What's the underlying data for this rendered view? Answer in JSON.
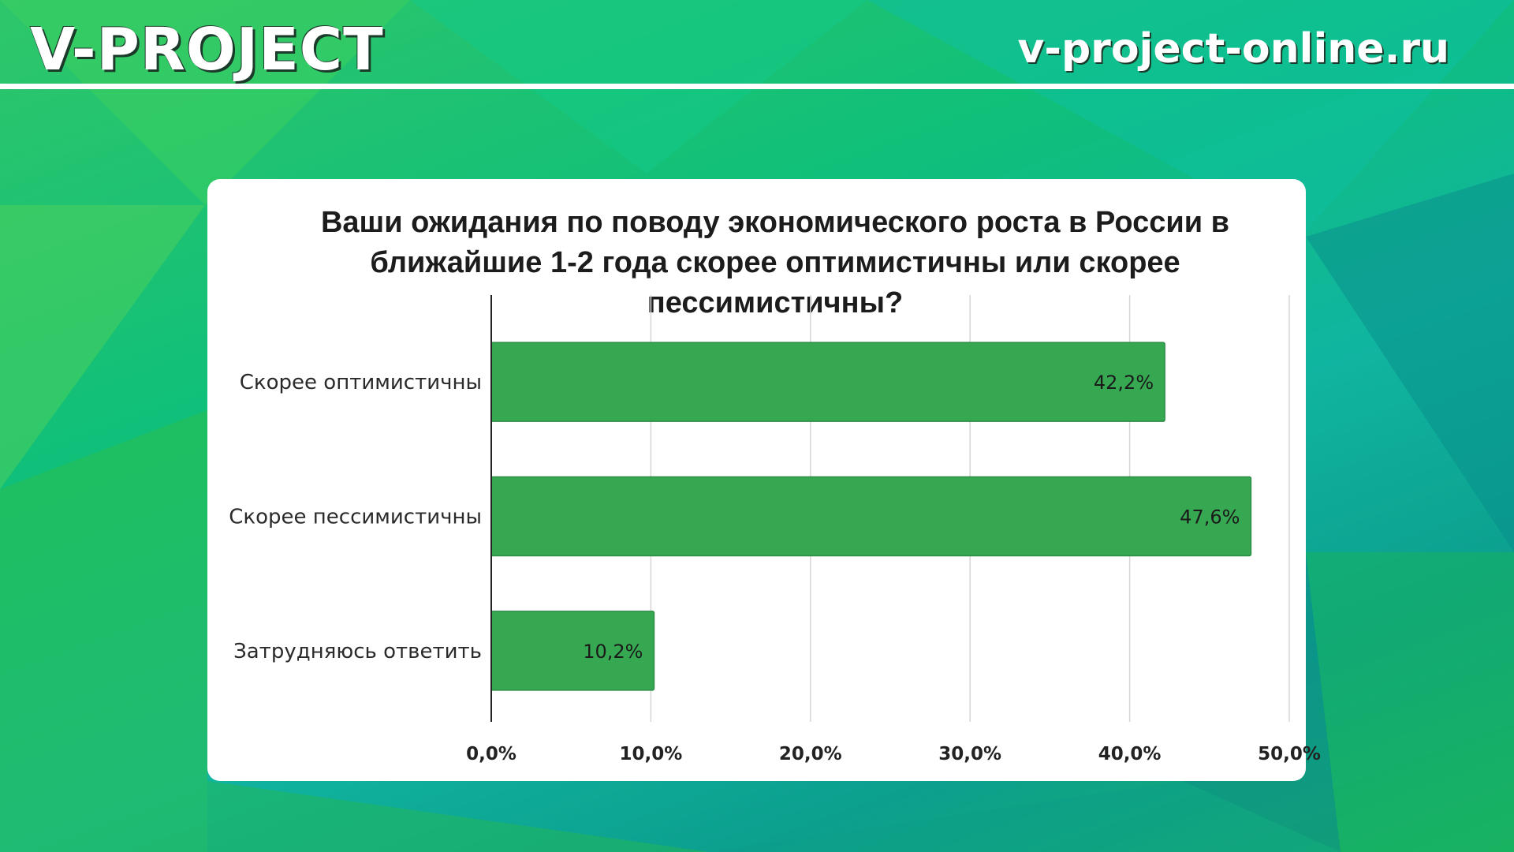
{
  "header": {
    "brand": "V-PROJECT",
    "site": "v-project-online.ru"
  },
  "colors": {
    "bar": "#36a852",
    "bar_border": "#2e8c45",
    "grid": "#d6d6d6",
    "axis": "#222222"
  },
  "chart_data": {
    "type": "bar",
    "orientation": "horizontal",
    "title": "Ваши ожидания по поводу экономического роста в России в ближайшие 1-2 года скорее оптимистичны или скорее пессимистичны?",
    "categories": [
      "Скорее оптимистичны",
      "Скорее пессимистичны",
      "Затрудняюсь ответить"
    ],
    "values": [
      42.2,
      47.6,
      10.2
    ],
    "data_labels": [
      "42,2%",
      "47,6%",
      "10,2%"
    ],
    "xlim": [
      0,
      50
    ],
    "xticks": [
      0,
      10,
      20,
      30,
      40,
      50
    ],
    "xtick_labels": [
      "0,0%",
      "10,0%",
      "20,0%",
      "30,0%",
      "40,0%",
      "50,0%"
    ],
    "grid": true,
    "legend": "none"
  }
}
